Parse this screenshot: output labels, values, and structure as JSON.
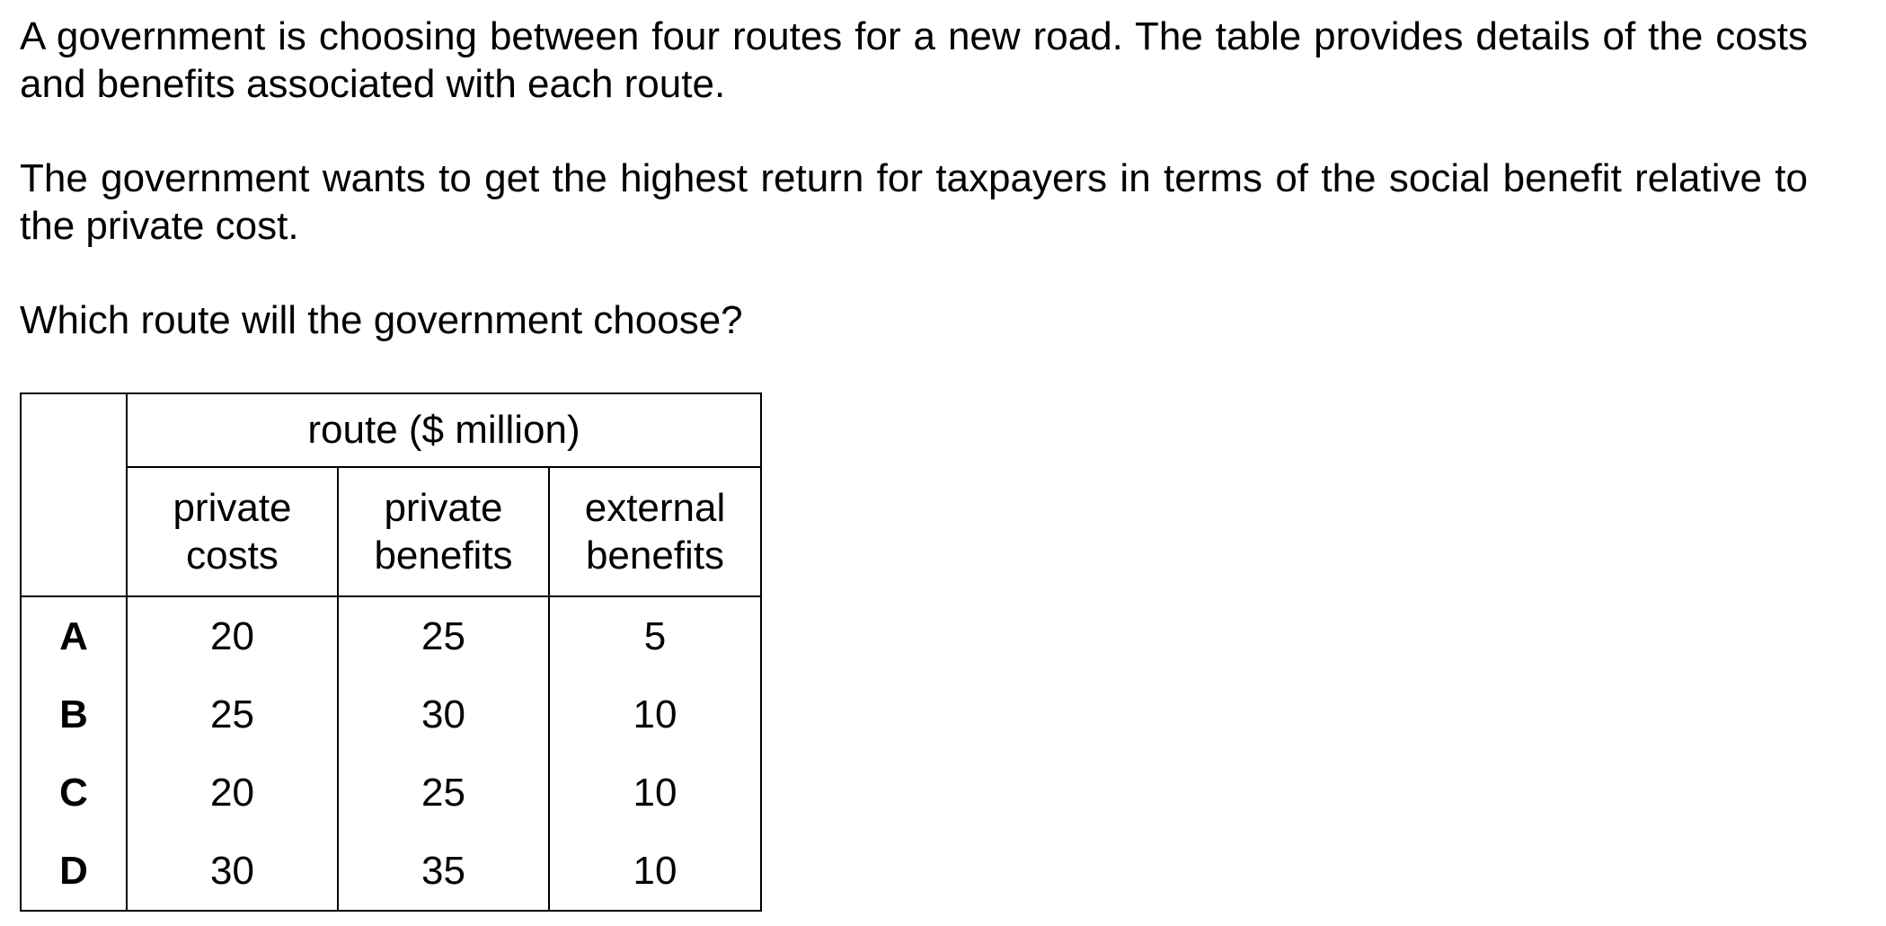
{
  "question": {
    "paragraph1": "A government is choosing between four routes for a new road. The table provides details of the costs and benefits associated with each route.",
    "paragraph2": "The government wants to get the highest return for taxpayers in terms of the social benefit relative to the private cost.",
    "paragraph3": "Which route will the government choose?"
  },
  "table": {
    "group_header": "route ($ million)",
    "columns": [
      {
        "line1": "private",
        "line2": "costs"
      },
      {
        "line1": "private",
        "line2": "benefits"
      },
      {
        "line1": "external",
        "line2": "benefits"
      }
    ],
    "rows": [
      {
        "label": "A",
        "private_costs": "20",
        "private_benefits": "25",
        "external_benefits": "5"
      },
      {
        "label": "B",
        "private_costs": "25",
        "private_benefits": "30",
        "external_benefits": "10"
      },
      {
        "label": "C",
        "private_costs": "20",
        "private_benefits": "25",
        "external_benefits": "10"
      },
      {
        "label": "D",
        "private_costs": "30",
        "private_benefits": "35",
        "external_benefits": "10"
      }
    ]
  }
}
